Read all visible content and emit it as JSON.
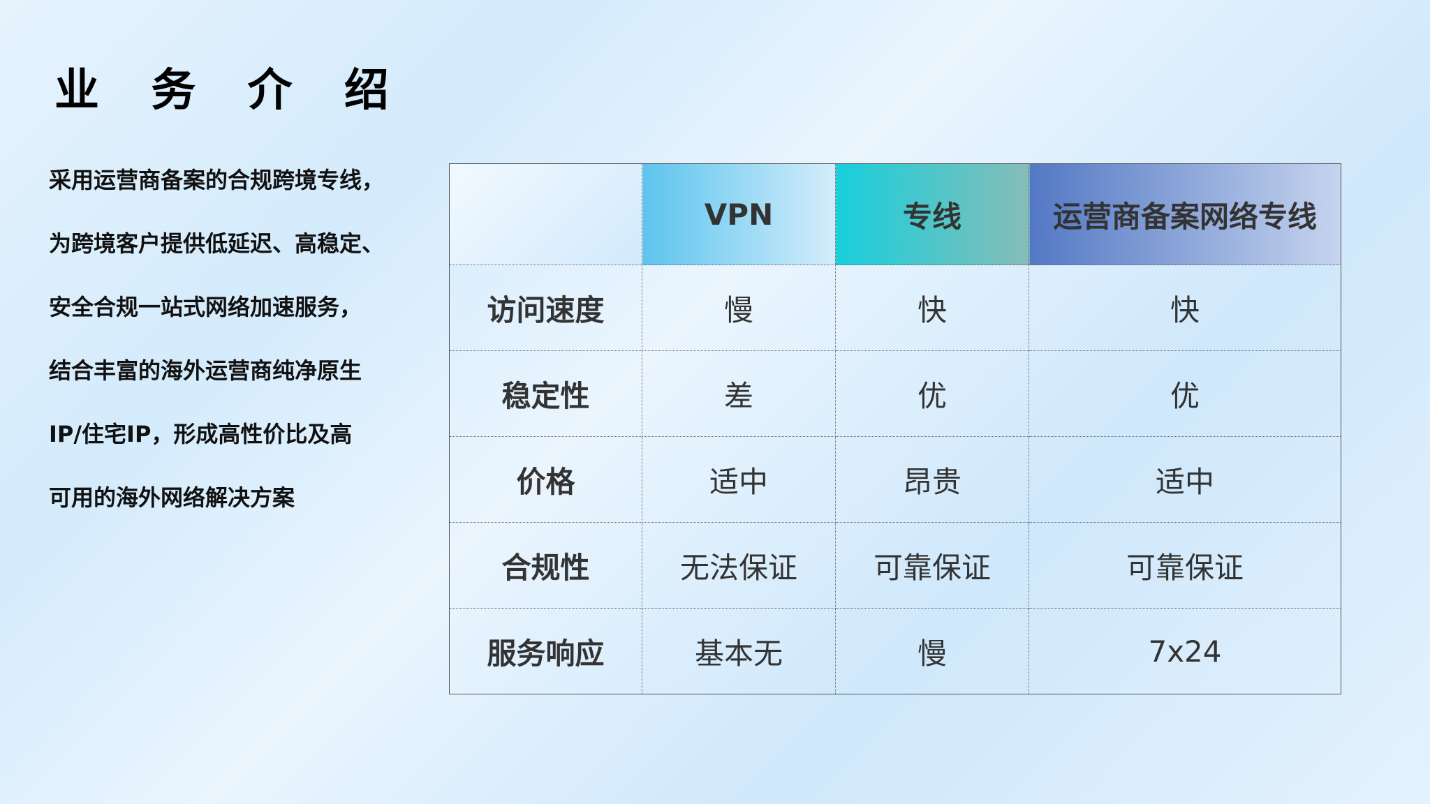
{
  "title": "业 务 介 绍",
  "intro_lines": [
    "采用运营商备案的合规跨境专线，",
    "为跨境客户提供低延迟、高稳定、",
    "安全合规一站式网络加速服务，",
    "结合丰富的海外运营商纯净原生",
    "IP/住宅IP，形成高性价比及高",
    "可用的海外网络解决方案"
  ],
  "table": {
    "headers": [
      "",
      "VPN",
      "专线",
      "运营商备案网络专线"
    ],
    "header_colors": [
      "#e6f3fd",
      "#5ec4ee",
      "#17cfdc",
      "#5378c4"
    ],
    "rows": [
      [
        "访问速度",
        "慢",
        "快",
        "快"
      ],
      [
        "稳定性",
        "差",
        "优",
        "优"
      ],
      [
        "价格",
        "适中",
        "昂贵",
        "适中"
      ],
      [
        "合规性",
        "无法保证",
        "可靠保证",
        "可靠保证"
      ],
      [
        "服务响应",
        "基本无",
        "慢",
        "7x24"
      ]
    ]
  }
}
